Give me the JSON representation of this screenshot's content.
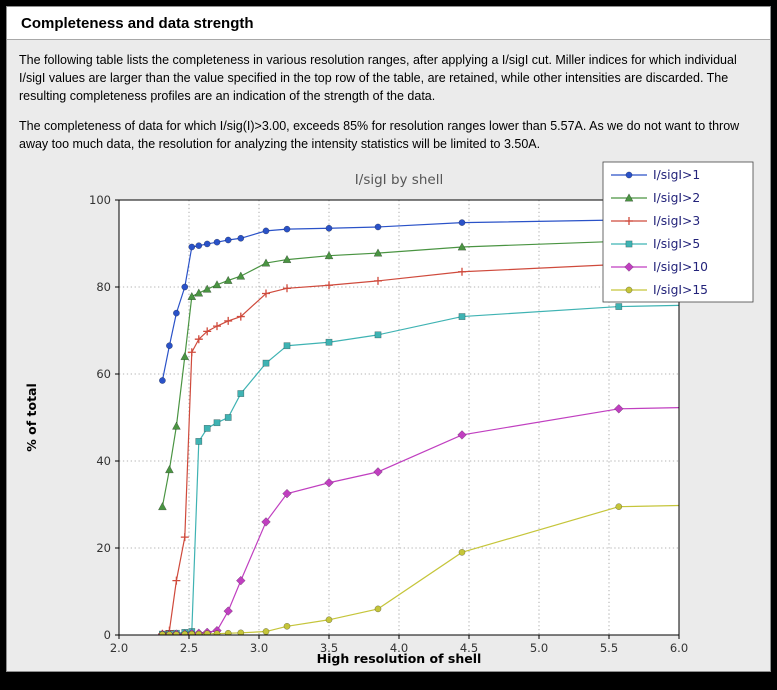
{
  "header": {
    "title": "Completeness and data strength"
  },
  "description": {
    "paragraph1": "The following table lists the completeness in various resolution ranges, after applying a I/sigI cut. Miller indices for which individual I/sigI values are larger than the value specified in the top row of the table, are retained, while other intensities are discarded. The resulting completeness profiles are an indication of the strength of the data.",
    "paragraph2": "The completeness of data for which I/sig(I)>3.00, exceeds  85% for resolution ranges lower than 5.57A. As we do not want to throw away too much data, the resolution for analyzing the intensity statistics will be limited to 3.50A."
  },
  "chart_data": {
    "type": "line",
    "title": "I/sigI by shell",
    "xlabel": "High resolution of shell",
    "ylabel": "% of total",
    "xlim": [
      2.0,
      6.0
    ],
    "ylim": [
      0,
      100
    ],
    "xticks": [
      2.0,
      2.5,
      3.0,
      3.5,
      4.0,
      4.5,
      5.0,
      5.5,
      6.0
    ],
    "xtick_labels": [
      "2.0",
      "2.5",
      "3.0",
      "3.5",
      "4.0",
      "4.5",
      "5.0",
      "5.5",
      "6.0"
    ],
    "yticks": [
      0,
      20,
      40,
      60,
      80,
      100
    ],
    "ytick_labels": [
      "0",
      "20",
      "40",
      "60",
      "80",
      "100"
    ],
    "grid": "dotted",
    "legend_position": "top-right",
    "x": [
      2.31,
      2.36,
      2.41,
      2.47,
      2.52,
      2.57,
      2.63,
      2.7,
      2.78,
      2.87,
      3.05,
      3.2,
      3.5,
      3.85,
      4.45,
      5.57
    ],
    "series": [
      {
        "name": "I/sigI>1",
        "color": "#2a52c8",
        "marker": "circle",
        "values": [
          58.5,
          66.5,
          74.0,
          80.0,
          89.2,
          89.5,
          89.9,
          90.3,
          90.8,
          91.2,
          92.9,
          93.3,
          93.5,
          93.8,
          94.8,
          95.4
        ],
        "edge_value": 95.7
      },
      {
        "name": "I/sigI>2",
        "color": "#4a9442",
        "marker": "triangle",
        "values": [
          29.5,
          38.0,
          48.0,
          64.0,
          77.8,
          78.6,
          79.5,
          80.5,
          81.5,
          82.5,
          85.5,
          86.3,
          87.2,
          87.8,
          89.2,
          90.5
        ],
        "edge_value": 90.8
      },
      {
        "name": "I/sigI>3",
        "color": "#cf4a3c",
        "marker": "plus",
        "values": [
          0.3,
          1.0,
          12.5,
          22.5,
          65.0,
          68.0,
          69.8,
          71.0,
          72.2,
          73.2,
          78.5,
          79.7,
          80.4,
          81.4,
          83.5,
          85.2
        ],
        "edge_value": 85.5
      },
      {
        "name": "I/sigI>5",
        "color": "#3fb3b3",
        "marker": "square",
        "values": [
          0.2,
          0.3,
          0.4,
          0.6,
          0.8,
          44.5,
          47.5,
          48.8,
          50.0,
          55.5,
          62.5,
          66.5,
          67.3,
          69.0,
          73.2,
          75.5
        ],
        "edge_value": 75.8
      },
      {
        "name": "I/sigI>10",
        "color": "#c03fc0",
        "marker": "diamond",
        "values": [
          0.1,
          0.1,
          0.2,
          0.2,
          0.3,
          0.4,
          0.6,
          1.0,
          5.5,
          12.5,
          26.0,
          32.5,
          35.0,
          37.5,
          46.0,
          52.0
        ],
        "edge_value": 52.3
      },
      {
        "name": "I/sigI>15",
        "color": "#c5c53a",
        "marker": "circle",
        "values": [
          0.1,
          0.1,
          0.1,
          0.2,
          0.2,
          0.2,
          0.3,
          0.3,
          0.4,
          0.5,
          0.8,
          2.0,
          3.5,
          6.0,
          19.0,
          29.5
        ],
        "edge_value": 29.8
      }
    ]
  }
}
